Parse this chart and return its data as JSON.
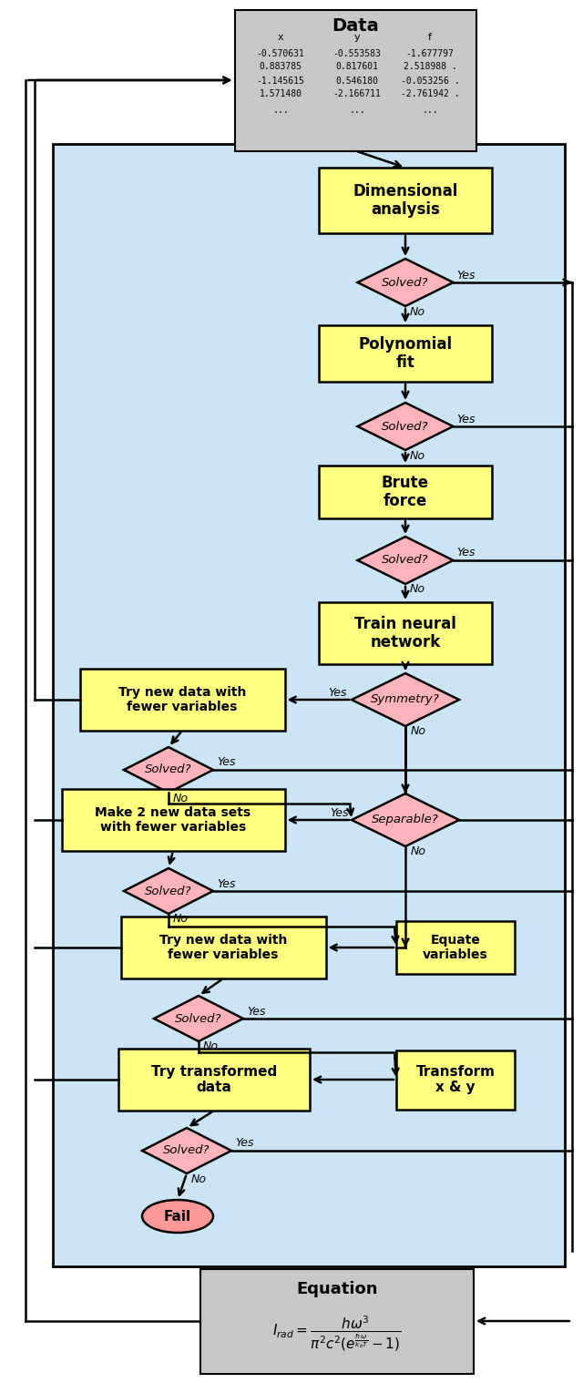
{
  "fig_width": 6.4,
  "fig_height": 15.18,
  "dpi": 100,
  "bg_color": "#ffffff",
  "loop_bg_color": "#cce5f5",
  "box_yellow": "#ffff80",
  "box_pink": "#ffb3ba",
  "box_gray": "#c8c8c8",
  "data_table": {
    "title": "Data",
    "headers": [
      "x",
      "y",
      "f"
    ],
    "rows": [
      [
        "-0.570631",
        "-0.553583",
        "-1.677797"
      ],
      [
        "0.883785",
        "0.817601",
        "2.518988 ."
      ],
      [
        "-1.145615",
        "0.546180",
        "-0.053256 ."
      ],
      [
        "1.571480",
        "-2.166711",
        "-2.761942 ."
      ],
      [
        "...",
        "...",
        "..."
      ]
    ]
  }
}
